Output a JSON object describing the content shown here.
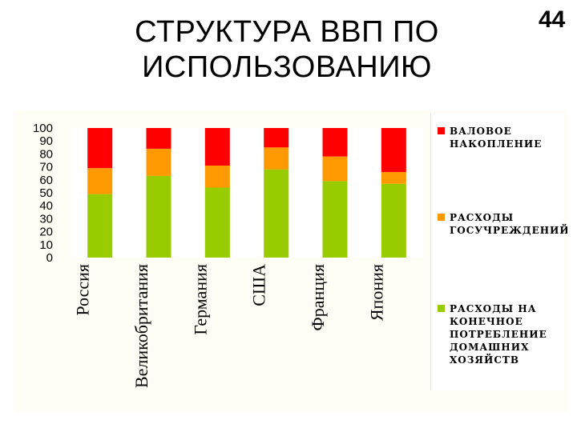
{
  "slide": {
    "title_line1": "СТРУКТУРА ВВП ПО",
    "title_line2": "ИСПОЛЬЗОВАНИЮ",
    "number": "44"
  },
  "chart_data": {
    "type": "bar",
    "stacked": true,
    "categories": [
      "Россия",
      "Великобритания",
      "Германия",
      "США",
      "Франция",
      "Япония"
    ],
    "series": [
      {
        "name": "РАСХОДЫ НА КОНЕЧНОЕ ПОТРЕБЛЕНИЕ ДОМАШНИХ ХОЗЯЙСТВ",
        "color": "#99cc00",
        "values": [
          49,
          63,
          54,
          68,
          59,
          57
        ]
      },
      {
        "name": "РАСХОДЫ ГОСУЧРЕЖДЕНИЙ",
        "color": "#ff9900",
        "values": [
          20,
          21,
          17,
          17,
          19,
          9
        ]
      },
      {
        "name": "ВАЛОВОЕ НАКОПЛЕНИЕ",
        "color": "#ff0000",
        "values": [
          31,
          16,
          29,
          15,
          22,
          34
        ]
      }
    ],
    "yticks": [
      "100",
      "90",
      "80",
      "70",
      "60",
      "50",
      "40",
      "30",
      "20",
      "10",
      "0"
    ],
    "ylim": [
      0,
      100
    ],
    "legend_position": "right",
    "legend_lines": [
      [
        "ВАЛОВОЕ",
        "НАКОПЛЕНИЕ"
      ],
      [
        "РАСХОДЫ",
        "ГОСУЧРЕЖДЕНИЙ"
      ],
      [
        "РАСХОДЫ НА",
        "КОНЕЧНОЕ",
        "ПОТРЕБЛЕНИЕ",
        "ДОМАШНИХ",
        "ХОЗЯЙСТВ"
      ]
    ]
  }
}
